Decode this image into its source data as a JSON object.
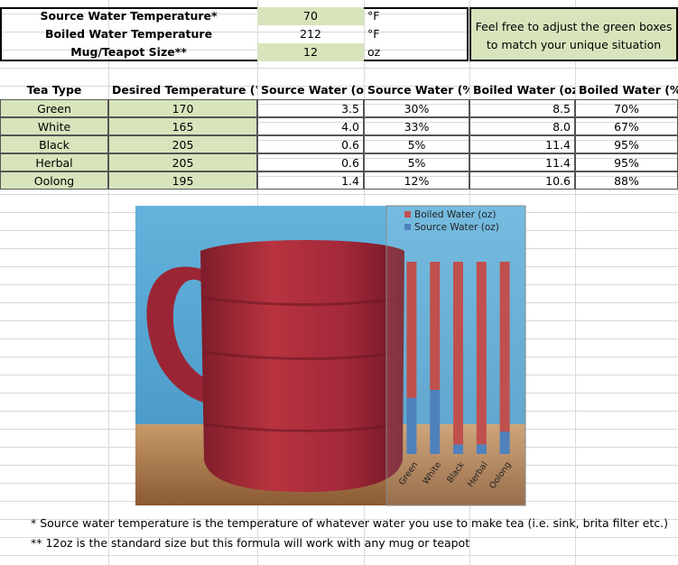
{
  "inputs": {
    "rows": [
      [
        "Source Water Temperature*",
        "70",
        "°F"
      ],
      [
        "Boiled Water Temperature",
        "212",
        "°F"
      ],
      [
        "Mug/Teapot Size**",
        "12",
        "oz"
      ]
    ],
    "note": [
      "Feel free to adjust the green boxes",
      "to match your unique situation"
    ]
  },
  "table": {
    "header": [
      "Tea Type",
      "Desired Temperature (°F)",
      "Source Water (oz)",
      "Source Water (%)",
      "Boiled Water (oz)",
      "Boiled Water (%)"
    ],
    "rows": [
      [
        "Green",
        "170",
        "3.5",
        "30%",
        "8.5",
        "70%"
      ],
      [
        "White",
        "165",
        "4.0",
        "33%",
        "8.0",
        "67%"
      ],
      [
        "Black",
        "205",
        "0.6",
        "5%",
        "11.4",
        "95%"
      ],
      [
        "Herbal",
        "205",
        "0.6",
        "5%",
        "11.4",
        "95%"
      ],
      [
        "Oolong",
        "195",
        "1.4",
        "12%",
        "10.6",
        "88%"
      ]
    ]
  },
  "chart_data": {
    "type": "bar",
    "stacked": true,
    "categories": [
      "Green",
      "White",
      "Black",
      "Herbal",
      "Oolong"
    ],
    "series": [
      {
        "name": "Boiled Water (oz)",
        "color": "#c0504d",
        "values": [
          8.5,
          8.0,
          11.4,
          11.4,
          10.6
        ]
      },
      {
        "name": "Source Water (oz)",
        "color": "#4f81bd",
        "values": [
          3.5,
          4.0,
          0.6,
          0.6,
          1.4
        ]
      }
    ]
  },
  "footnotes": [
    "* Source water temperature is the temperature of whatever water you use to make tea (i.e. sink, brita filter etc.)",
    "** 12oz is the standard size but this formula will work with any mug or teapot"
  ]
}
